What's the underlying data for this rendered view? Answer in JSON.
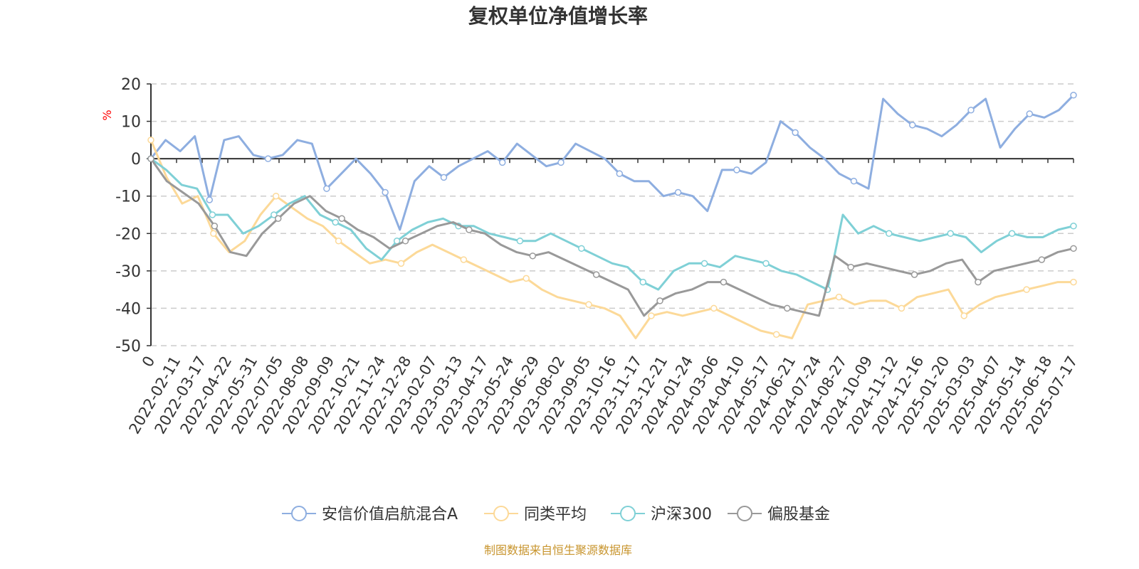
{
  "chart_data": {
    "type": "line",
    "title": "复权单位净值增长率",
    "ylabel": "%",
    "ylim": [
      -50,
      20
    ],
    "yticks": [
      20,
      10,
      0,
      -10,
      -20,
      -30,
      -40,
      -50
    ],
    "grid": true,
    "legend_position": "bottom",
    "source_note": "制图数据来自恒生聚源数据库",
    "x_tick_labels": [
      "0",
      "2022-02-11",
      "2022-03-17",
      "2022-04-22",
      "2022-05-31",
      "2022-07-05",
      "2022-08-08",
      "2022-09-09",
      "2022-10-21",
      "2022-11-24",
      "2022-12-28",
      "2023-02-07",
      "2023-03-13",
      "2023-04-17",
      "2023-05-24",
      "2023-06-29",
      "2023-08-02",
      "2023-09-05",
      "2023-10-16",
      "2023-11-17",
      "2023-12-21",
      "2024-01-24",
      "2024-03-06",
      "2024-04-10",
      "2024-05-17",
      "2024-06-21",
      "2024-07-24",
      "2024-08-27",
      "2024-10-09",
      "2024-11-12",
      "2024-12-16",
      "2025-01-20",
      "2025-03-03",
      "2025-04-07",
      "2025-05-14",
      "2025-06-18",
      "2025-07-17"
    ],
    "series": [
      {
        "name": "安信价值启航混合A",
        "color": "#8eaee0",
        "values": [
          0,
          5,
          2,
          6,
          -11,
          5,
          6,
          1,
          0,
          1,
          5,
          4,
          -8,
          -4,
          0,
          -4,
          -9,
          -19,
          -6,
          -2,
          -5,
          -2,
          0,
          2,
          -1,
          4,
          1,
          -2,
          -1,
          4,
          2,
          0,
          -4,
          -6,
          -6,
          -10,
          -9,
          -10,
          -14,
          -3,
          -3,
          -4,
          -1,
          10,
          7,
          3,
          0,
          -4,
          -6,
          -8,
          16,
          12,
          9,
          8,
          6,
          9,
          13,
          16,
          3,
          8,
          12,
          11,
          13,
          17
        ]
      },
      {
        "name": "同类平均",
        "color": "#fcd998",
        "values": [
          5,
          -5,
          -12,
          -10,
          -20,
          -25,
          -22,
          -15,
          -10,
          -13,
          -16,
          -18,
          -22,
          -25,
          -28,
          -27,
          -28,
          -25,
          -23,
          -25,
          -27,
          -29,
          -31,
          -33,
          -32,
          -35,
          -37,
          -38,
          -39,
          -40,
          -42,
          -48,
          -42,
          -41,
          -42,
          -41,
          -40,
          -42,
          -44,
          -46,
          -47,
          -48,
          -39,
          -38,
          -37,
          -39,
          -38,
          -38,
          -40,
          -37,
          -36,
          -35,
          -42,
          -39,
          -37,
          -36,
          -35,
          -34,
          -33,
          -33
        ]
      },
      {
        "name": "沪深300",
        "color": "#7fd0d6",
        "values": [
          0,
          -3,
          -7,
          -8,
          -15,
          -15,
          -20,
          -18,
          -15,
          -12,
          -10,
          -15,
          -17,
          -19,
          -24,
          -27,
          -22,
          -19,
          -17,
          -16,
          -18,
          -18,
          -20,
          -21,
          -22,
          -22,
          -20,
          -22,
          -24,
          -26,
          -28,
          -29,
          -33,
          -35,
          -30,
          -28,
          -28,
          -29,
          -26,
          -27,
          -28,
          -30,
          -31,
          -33,
          -35,
          -15,
          -20,
          -18,
          -20,
          -21,
          -22,
          -21,
          -20,
          -21,
          -25,
          -22,
          -20,
          -21,
          -21,
          -19,
          -18
        ]
      },
      {
        "name": "偏股基金",
        "color": "#999999",
        "values": [
          0,
          -6,
          -9,
          -12,
          -18,
          -25,
          -26,
          -20,
          -16,
          -12,
          -10,
          -14,
          -16,
          -19,
          -21,
          -24,
          -22,
          -20,
          -18,
          -17,
          -19,
          -20,
          -23,
          -25,
          -26,
          -25,
          -27,
          -29,
          -31,
          -33,
          -35,
          -42,
          -38,
          -36,
          -35,
          -33,
          -33,
          -35,
          -37,
          -39,
          -40,
          -41,
          -42,
          -26,
          -29,
          -28,
          -29,
          -30,
          -31,
          -30,
          -28,
          -27,
          -33,
          -30,
          -29,
          -28,
          -27,
          -25,
          -24
        ]
      }
    ]
  }
}
